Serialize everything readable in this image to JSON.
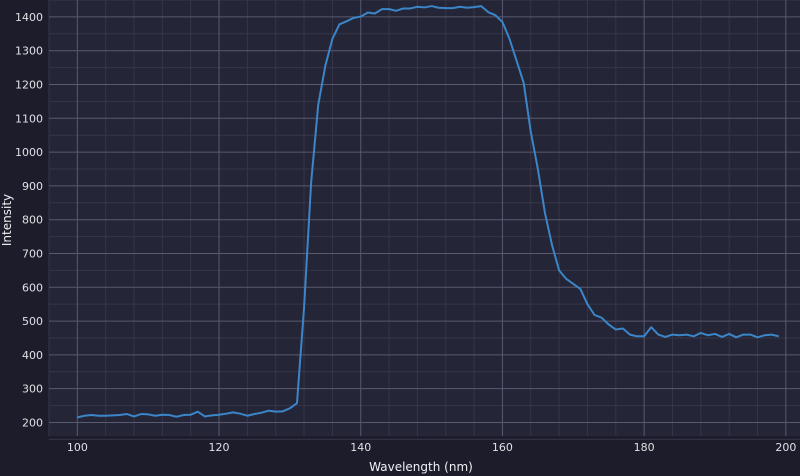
{
  "chart_data": {
    "type": "line",
    "title": "",
    "xlabel": "Wavelength (nm)",
    "ylabel": "Intensity",
    "xlim": [
      96,
      202
    ],
    "ylim": [
      160,
      1450
    ],
    "x_ticks": [
      100,
      120,
      140,
      160,
      180,
      200
    ],
    "y_ticks": [
      200,
      300,
      400,
      500,
      600,
      700,
      800,
      900,
      1000,
      1100,
      1200,
      1300,
      1400
    ],
    "grid": true,
    "minor_grid": true,
    "colors": {
      "background": "#1c1c2a",
      "plot_area": "#252538",
      "grid_major": "#5a5a70",
      "grid_minor": "#36364a",
      "line": "#3a86c8"
    },
    "series": [
      {
        "x": [
          100,
          101,
          102,
          103,
          104,
          105,
          106,
          107,
          108,
          109,
          110,
          111,
          112,
          113,
          114,
          115,
          116,
          117,
          118,
          119,
          120,
          121,
          122,
          123,
          124,
          125,
          126,
          127,
          128,
          129,
          130,
          131,
          132,
          133,
          134,
          135,
          136,
          137,
          138,
          139,
          140,
          141,
          142,
          143,
          144,
          145,
          146,
          147,
          148,
          149,
          150,
          151,
          152,
          153,
          154,
          155,
          156,
          157,
          158,
          159,
          160,
          161,
          162,
          163,
          164,
          165,
          166,
          167,
          168,
          169,
          170,
          171,
          172,
          173,
          174,
          175,
          176,
          177,
          178,
          179,
          180,
          181,
          182,
          183,
          184,
          185,
          186,
          187,
          188,
          189,
          190,
          191,
          192,
          193,
          194,
          195,
          196,
          197,
          198,
          199
        ],
        "y": [
          215,
          220,
          222,
          220,
          220,
          221,
          222,
          225,
          218,
          225,
          224,
          220,
          223,
          222,
          217,
          222,
          223,
          232,
          218,
          221,
          223,
          226,
          230,
          226,
          220,
          225,
          229,
          235,
          232,
          233,
          242,
          257,
          540,
          910,
          1140,
          1255,
          1335,
          1378,
          1387,
          1397,
          1401,
          1413,
          1410,
          1423,
          1423,
          1418,
          1425,
          1425,
          1430,
          1428,
          1432,
          1427,
          1426,
          1426,
          1430,
          1427,
          1429,
          1432,
          1414,
          1405,
          1385,
          1335,
          1270,
          1205,
          1060,
          950,
          820,
          725,
          650,
          625,
          610,
          595,
          550,
          518,
          510,
          490,
          475,
          478,
          460,
          455,
          455,
          482,
          460,
          453,
          460,
          458,
          460,
          455,
          465,
          458,
          462,
          453,
          462,
          452,
          460,
          460,
          452,
          458,
          460,
          455
        ]
      }
    ]
  }
}
